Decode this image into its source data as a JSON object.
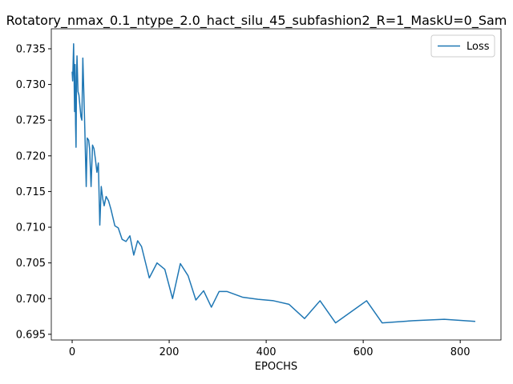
{
  "chart_data": {
    "type": "line",
    "title": "Rotatory_nmax_0.1_ntype_2.0_hact_silu_45_subfashion2_R=1_MaskU=0_Sam",
    "x_label": "EPOCHS",
    "x": [
      0,
      1,
      2,
      3,
      4,
      5,
      6,
      7,
      8,
      9,
      10,
      12,
      14,
      16,
      18,
      20,
      22,
      24,
      26,
      29,
      31,
      34,
      36,
      39,
      42,
      45,
      48,
      51,
      54,
      57,
      60,
      63,
      66,
      70,
      75,
      80,
      88,
      95,
      103,
      111,
      119,
      127,
      135,
      143,
      159,
      175,
      191,
      207,
      223,
      239,
      255,
      271,
      287,
      303,
      319,
      351,
      383,
      415,
      447,
      479,
      511,
      543,
      607,
      639,
      703,
      767,
      831
    ],
    "series": [
      {
        "name": "Loss",
        "color": "#1f77b4",
        "values": [
          0.7318,
          0.7305,
          0.733,
          0.7357,
          0.731,
          0.7262,
          0.7328,
          0.7245,
          0.7212,
          0.731,
          0.734,
          0.729,
          0.7285,
          0.727,
          0.7255,
          0.725,
          0.7337,
          0.729,
          0.724,
          0.7157,
          0.7225,
          0.7222,
          0.721,
          0.7157,
          0.7215,
          0.721,
          0.7195,
          0.7177,
          0.719,
          0.7103,
          0.7157,
          0.714,
          0.713,
          0.7143,
          0.7137,
          0.7125,
          0.7102,
          0.7099,
          0.7083,
          0.708,
          0.7088,
          0.7061,
          0.7081,
          0.7073,
          0.7029,
          0.705,
          0.7041,
          0.7,
          0.7049,
          0.7032,
          0.6998,
          0.7011,
          0.6988,
          0.701,
          0.701,
          0.7002,
          0.6999,
          0.6997,
          0.6992,
          0.6972,
          0.6997,
          0.6966,
          0.6997,
          0.6966,
          0.6969,
          0.6971,
          0.6968
        ]
      }
    ],
    "xlim": [
      -43,
      884
    ],
    "xticks": [
      0,
      200,
      400,
      600,
      800
    ],
    "ylim": [
      0.6942,
      0.7378
    ],
    "yticks": [
      0.695,
      {
        "value": 0.7,
        "label": "0.700"
      },
      0.705,
      {
        "value": 0.71,
        "label": "0.710"
      },
      0.715,
      {
        "value": 0.72,
        "label": "0.720"
      },
      0.725,
      {
        "value": 0.73,
        "label": "0.730"
      },
      0.735
    ],
    "legend": "upper right",
    "grid": false
  }
}
